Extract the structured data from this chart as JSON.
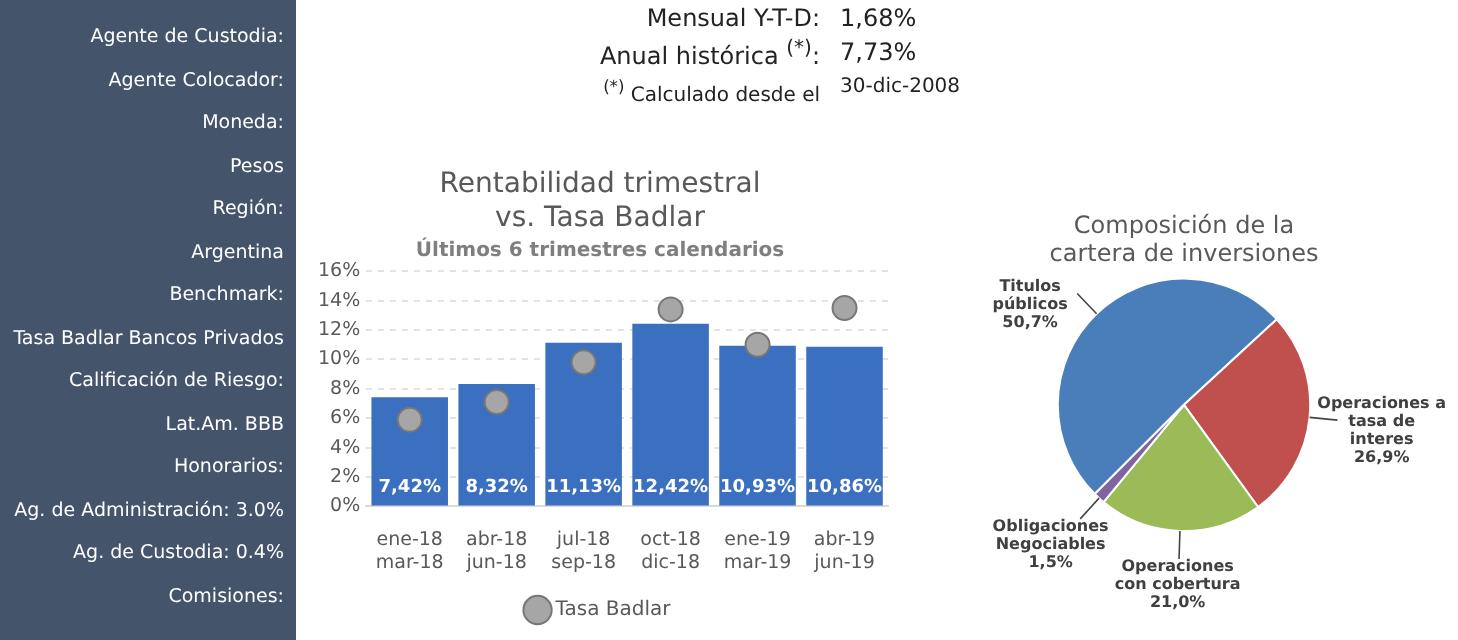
{
  "chart_data": [
    {
      "type": "other",
      "annotations": [
        "Agente de Custodia:",
        "Agente Colocador:",
        "Moneda:",
        "Pesos",
        "Región:",
        "Argentina",
        "Benchmark:",
        "Tasa Badlar Bancos Privados",
        "Calificación de Riesgo:",
        "Lat.Am. BBB",
        "Honorarios:",
        "Ag. de Administración: 3.0%",
        "Ag. de Custodia: 0.4%",
        "Comisiones:"
      ]
    },
    {
      "type": "other",
      "annotations": [
        "Mensual Y-T-D:",
        "1,68%",
        "Anual histórica $^{(*)}$:",
        "7,73%",
        "$^{(*)}$ Calculado desde el",
        "30-dic-2008"
      ]
    },
    {
      "type": "bar",
      "title": "Rentabilidad trimestral vs. Tasa Badlar",
      "subtitle": "Últimos 6 trimestres calendarios",
      "categories": [
        "ene-18 mar-18",
        "abr-18 jun-18",
        "jul-18 sep-18",
        "oct-18 dic-18",
        "ene-19 mar-19",
        "abr-19 jun-19"
      ],
      "series": [
        {
          "color": "#3b6fbf",
          "values": [
            7.42,
            8.32,
            11.13,
            12.42,
            10.93,
            10.86
          ],
          "value_labels": [
            "7,42%",
            "8,32%",
            "11,13%",
            "12,42%",
            "10,93%",
            "10,86%"
          ]
        },
        {
          "type": "scatter",
          "name": "Tasa Badlar",
          "color": "#a6a6a6",
          "x": [
            "ene-18 mar-18",
            "abr-18 jun-18",
            "jul-18 sep-18",
            "oct-18 dic-18",
            "ene-19 mar-19",
            "abr-19 jun-19"
          ],
          "values": [
            5.9,
            7.1,
            9.8,
            13.4,
            11.0,
            13.5
          ]
        }
      ],
      "ylim": [
        0,
        16
      ],
      "yticks": [
        {
          "value": 0,
          "label": "0%"
        },
        {
          "value": 2,
          "label": "2%"
        },
        {
          "value": 4,
          "label": "4%"
        },
        {
          "value": 6,
          "label": "6%"
        },
        {
          "value": 8,
          "label": "8%"
        },
        {
          "value": 10,
          "label": "10%"
        },
        {
          "value": 12,
          "label": "12%"
        },
        {
          "value": 14,
          "label": "14%"
        },
        {
          "value": 16,
          "label": "16%"
        }
      ],
      "grid": "y",
      "legend": "bottom",
      "marker": "circle"
    },
    {
      "type": "pie",
      "title": "Composición de la cartera de inversiones",
      "categories": [
        "Titulos públicos",
        "Operaciones a tasa de interes",
        "Operaciones con cobertura",
        "Obligaciones Negociables"
      ],
      "values": [
        50.7,
        26.9,
        21.0,
        1.5
      ],
      "value_labels": [
        "50,7%",
        "26,9%",
        "21,0%",
        "1,5%"
      ],
      "colors": [
        "#4a7ebb",
        "#c0504d",
        "#9bbb59",
        "#7f64a2"
      ],
      "legend": false
    }
  ]
}
